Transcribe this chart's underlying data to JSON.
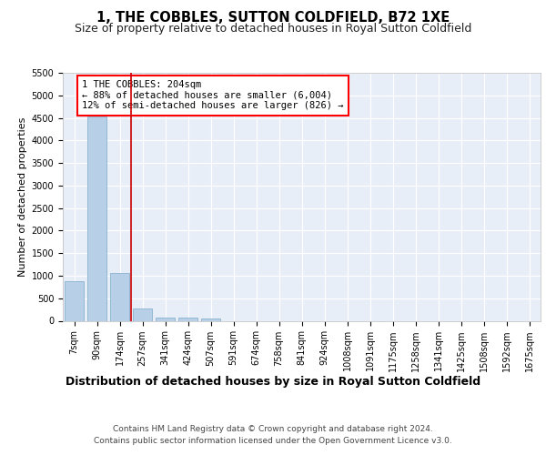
{
  "title": "1, THE COBBLES, SUTTON COLDFIELD, B72 1XE",
  "subtitle": "Size of property relative to detached houses in Royal Sutton Coldfield",
  "xlabel": "Distribution of detached houses by size in Royal Sutton Coldfield",
  "ylabel": "Number of detached properties",
  "footnote1": "Contains HM Land Registry data © Crown copyright and database right 2024.",
  "footnote2": "Contains public sector information licensed under the Open Government Licence v3.0.",
  "annotation_line1": "1 THE COBBLES: 204sqm",
  "annotation_line2": "← 88% of detached houses are smaller (6,004)",
  "annotation_line3": "12% of semi-detached houses are larger (826) →",
  "bar_color": "#b8cfe8",
  "bar_edge_color": "#7aaacb",
  "bg_color": "#e8eef8",
  "grid_color": "#ffffff",
  "marker_color": "#cc0000",
  "categories": [
    "7sqm",
    "90sqm",
    "174sqm",
    "257sqm",
    "341sqm",
    "424sqm",
    "507sqm",
    "591sqm",
    "674sqm",
    "758sqm",
    "841sqm",
    "924sqm",
    "1008sqm",
    "1091sqm",
    "1175sqm",
    "1258sqm",
    "1341sqm",
    "1425sqm",
    "1508sqm",
    "1592sqm",
    "1675sqm"
  ],
  "values": [
    880,
    4540,
    1060,
    270,
    80,
    80,
    50,
    0,
    0,
    0,
    0,
    0,
    0,
    0,
    0,
    0,
    0,
    0,
    0,
    0,
    0
  ],
  "ylim": [
    0,
    5500
  ],
  "yticks": [
    0,
    500,
    1000,
    1500,
    2000,
    2500,
    3000,
    3500,
    4000,
    4500,
    5000,
    5500
  ],
  "title_fontsize": 10.5,
  "subtitle_fontsize": 9,
  "annotation_fontsize": 7.5,
  "ylabel_fontsize": 8,
  "xlabel_fontsize": 9,
  "tick_fontsize": 7,
  "footnote_fontsize": 6.5
}
